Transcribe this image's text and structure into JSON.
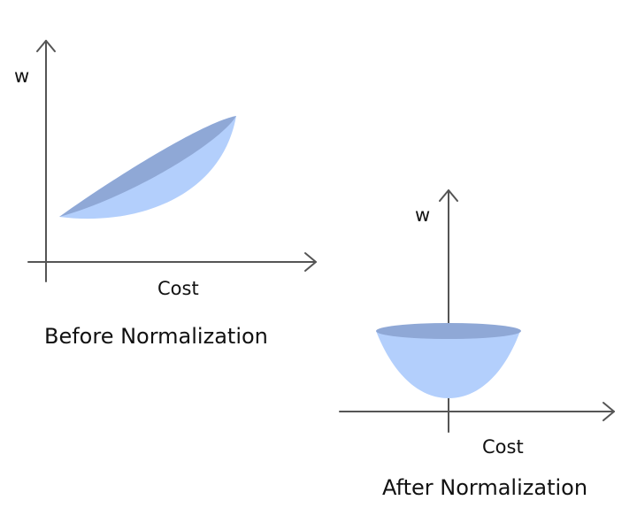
{
  "left_panel": {
    "y_axis_label": "w",
    "x_axis_label": "Cost",
    "caption": "Before Normalization"
  },
  "right_panel": {
    "y_axis_label": "w",
    "x_axis_label": "Cost",
    "caption": "After Normalization"
  },
  "colors": {
    "axis": "#555555",
    "bowl_fill": "#b3cffc",
    "bowl_rim": "#8fa8d6",
    "text": "#111111"
  }
}
